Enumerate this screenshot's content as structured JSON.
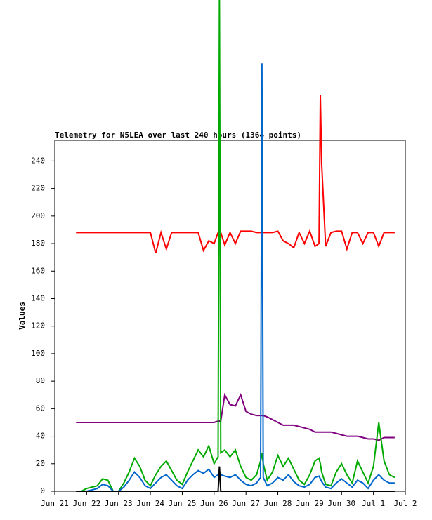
{
  "chart_data": {
    "type": "line",
    "title": "Telemetry for N5LEA over last 240 hours (1364 points)",
    "y_label": "Values",
    "xlim": [
      0,
      264
    ],
    "xticks": [
      {
        "value": 0,
        "label": "Jun 21"
      },
      {
        "value": 24,
        "label": "Jun 22"
      },
      {
        "value": 48,
        "label": "Jun 23"
      },
      {
        "value": 72,
        "label": "Jun 24"
      },
      {
        "value": 96,
        "label": "Jun 25"
      },
      {
        "value": 120,
        "label": "Jun 26"
      },
      {
        "value": 144,
        "label": "Jun 27"
      },
      {
        "value": 168,
        "label": "Jun 28"
      },
      {
        "value": 192,
        "label": "Jun 29"
      },
      {
        "value": 216,
        "label": "Jun 30"
      },
      {
        "value": 240,
        "label": "Jul 1"
      },
      {
        "value": 264,
        "label": "Jul 2"
      }
    ],
    "ylim": [
      0,
      255
    ],
    "yticks": [
      0,
      20,
      40,
      60,
      80,
      100,
      120,
      140,
      160,
      180,
      200,
      220,
      240
    ],
    "grid": false,
    "x": [
      16,
      20,
      24,
      28,
      32,
      36,
      40,
      44,
      48,
      52,
      56,
      60,
      64,
      68,
      72,
      76,
      80,
      84,
      88,
      92,
      96,
      100,
      104,
      108,
      112,
      116,
      120,
      123,
      124,
      125,
      128,
      132,
      136,
      140,
      144,
      148,
      152,
      155,
      156,
      157,
      160,
      164,
      168,
      172,
      176,
      180,
      184,
      188,
      192,
      196,
      199,
      200,
      201,
      204,
      208,
      212,
      216,
      220,
      224,
      228,
      232,
      236,
      240,
      244,
      248,
      252,
      256
    ],
    "series": [
      {
        "color": "#ff0000",
        "values": [
          188,
          188,
          188,
          188,
          188,
          188,
          188,
          188,
          188,
          188,
          188,
          188,
          188,
          188,
          188,
          173,
          188,
          176,
          188,
          188,
          188,
          188,
          188,
          188,
          175,
          182,
          180,
          188,
          180,
          188,
          179,
          188,
          180,
          189,
          189,
          189,
          188,
          188,
          188,
          188,
          188,
          188,
          189,
          182,
          180,
          177,
          188,
          180,
          189,
          178,
          180,
          288,
          238,
          178,
          188,
          189,
          189,
          176,
          188,
          188,
          180,
          188,
          188,
          178,
          188,
          188,
          188
        ]
      },
      {
        "color": "#800080",
        "values": [
          50,
          50,
          50,
          50,
          50,
          50,
          50,
          50,
          50,
          50,
          50,
          50,
          50,
          50,
          50,
          50,
          50,
          50,
          50,
          50,
          50,
          50,
          50,
          50,
          50,
          50,
          50,
          51,
          51,
          51,
          70,
          63,
          62,
          70,
          58,
          56,
          55,
          55,
          55,
          55,
          54,
          52,
          50,
          48,
          48,
          48,
          47,
          46,
          45,
          43,
          43,
          43,
          43,
          43,
          43,
          42,
          41,
          40,
          40,
          40,
          39,
          38,
          38,
          37,
          39,
          39,
          39
        ]
      },
      {
        "color": "#00aa00",
        "values": [
          0,
          0,
          2,
          3,
          4,
          9,
          8,
          0,
          0,
          6,
          14,
          24,
          18,
          8,
          4,
          12,
          18,
          22,
          15,
          8,
          5,
          14,
          22,
          30,
          25,
          33,
          20,
          25,
          357,
          28,
          30,
          25,
          30,
          18,
          10,
          8,
          12,
          22,
          28,
          20,
          8,
          14,
          26,
          18,
          24,
          16,
          8,
          5,
          12,
          22,
          24,
          20,
          14,
          5,
          4,
          14,
          20,
          12,
          6,
          22,
          14,
          6,
          18,
          50,
          22,
          12,
          10
        ]
      },
      {
        "color": "#0066cc",
        "values": [
          0,
          0,
          0,
          1,
          2,
          5,
          4,
          0,
          0,
          3,
          8,
          14,
          10,
          4,
          2,
          6,
          10,
          12,
          8,
          4,
          2,
          8,
          12,
          15,
          13,
          16,
          10,
          12,
          14,
          12,
          11,
          10,
          12,
          8,
          5,
          4,
          6,
          10,
          311,
          10,
          4,
          6,
          10,
          8,
          12,
          7,
          4,
          3,
          5,
          10,
          11,
          9,
          7,
          3,
          2,
          6,
          9,
          6,
          3,
          8,
          6,
          2,
          8,
          12,
          8,
          6,
          6
        ]
      },
      {
        "color": "#000000",
        "values": [
          0,
          0,
          0,
          0,
          0,
          0,
          0,
          0,
          0,
          0,
          0,
          0,
          0,
          0,
          0,
          0,
          0,
          0,
          0,
          0,
          0,
          0,
          0,
          0,
          0,
          0,
          0,
          0,
          18,
          0,
          0,
          0,
          0,
          0,
          0,
          0,
          0,
          0,
          0,
          0,
          0,
          0,
          0,
          0,
          0,
          0,
          0,
          0,
          0,
          0,
          0,
          0,
          0,
          0,
          0,
          0,
          0,
          0,
          0,
          0,
          0,
          0,
          0,
          0,
          0,
          0,
          0
        ]
      }
    ]
  }
}
